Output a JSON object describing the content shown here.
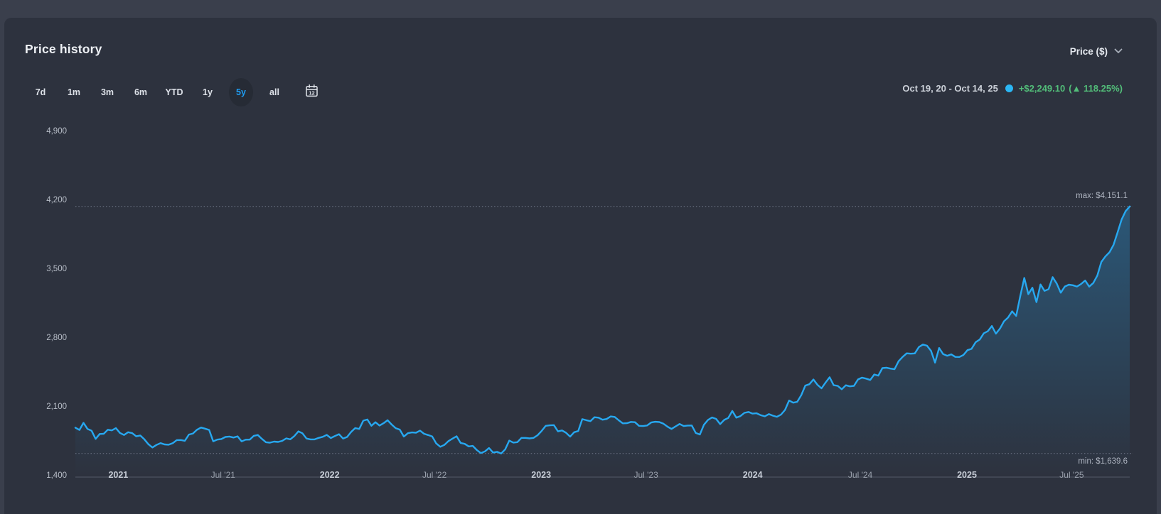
{
  "header": {
    "title": "Price history",
    "metric_label": "Price ($)"
  },
  "toolbar": {
    "ranges": [
      "7d",
      "1m",
      "3m",
      "6m",
      "YTD",
      "1y",
      "5y",
      "all"
    ],
    "selected": "5y",
    "calendar_day": "12"
  },
  "summary": {
    "date_range": "Oct 19, 20 - Oct 14, 25",
    "change_amount": "+$2,249.10",
    "change_percent_display": "(▲ 118.25%)"
  },
  "colors": {
    "line": "#27a8f0",
    "marker_dot": "#2bb7f5",
    "positive_green": "#52bd79",
    "selected_range_blue": "#1e9df2",
    "card_bg": "#2d323e"
  },
  "chart_data": {
    "type": "line",
    "title": "Price history",
    "ylabel": "Price ($)",
    "x_range_label": [
      "Oct 19, 20",
      "Oct 14, 25"
    ],
    "frequency": "weekly",
    "grid": "off",
    "ylim": [
      1400,
      4900
    ],
    "y_ticks": [
      {
        "value": 4900,
        "label": "4,900"
      },
      {
        "value": 4200,
        "label": "4,200"
      },
      {
        "value": 3500,
        "label": "3,500"
      },
      {
        "value": 2800,
        "label": "2,800"
      },
      {
        "value": 2100,
        "label": "2,100"
      },
      {
        "value": 1400,
        "label": "1,400"
      }
    ],
    "x_ticks": [
      {
        "label": "2021",
        "f": 0.0407,
        "emphasis": true
      },
      {
        "label": "Jul '21",
        "f": 0.1401,
        "emphasis": false
      },
      {
        "label": "2022",
        "f": 0.2412,
        "emphasis": true
      },
      {
        "label": "Jul '22",
        "f": 0.3406,
        "emphasis": false
      },
      {
        "label": "2023",
        "f": 0.4418,
        "emphasis": true
      },
      {
        "label": "Jul '23",
        "f": 0.5412,
        "emphasis": false
      },
      {
        "label": "2024",
        "f": 0.6424,
        "emphasis": true
      },
      {
        "label": "Jul '24",
        "f": 0.7445,
        "emphasis": false
      },
      {
        "label": "2025",
        "f": 0.8456,
        "emphasis": true
      },
      {
        "label": "Jul '25",
        "f": 0.945,
        "emphasis": false
      }
    ],
    "max": {
      "label": "max: $4,151.1",
      "value": 4151.1
    },
    "min": {
      "label": "min: $1,639.6",
      "value": 1639.6
    },
    "series": [
      {
        "name": "Price ($)",
        "values": [
          1902,
          1879,
          1951,
          1889,
          1871,
          1788,
          1838,
          1840,
          1881,
          1875,
          1898,
          1849,
          1828,
          1856,
          1847,
          1814,
          1823,
          1784,
          1734,
          1701,
          1727,
          1745,
          1732,
          1729,
          1744,
          1776,
          1777,
          1769,
          1832,
          1843,
          1881,
          1904,
          1892,
          1879,
          1764,
          1781,
          1787,
          1808,
          1812,
          1802,
          1814,
          1763,
          1780,
          1781,
          1819,
          1828,
          1788,
          1754,
          1750,
          1761,
          1757,
          1768,
          1793,
          1784,
          1817,
          1865,
          1845,
          1792,
          1783,
          1783,
          1798,
          1809,
          1829,
          1797,
          1817,
          1836,
          1792,
          1808,
          1859,
          1898,
          1889,
          1974,
          1985,
          1922,
          1958,
          1924,
          1948,
          1978,
          1934,
          1897,
          1883,
          1812,
          1846,
          1854,
          1851,
          1872,
          1840,
          1827,
          1813,
          1742,
          1708,
          1727,
          1766,
          1791,
          1815,
          1747,
          1738,
          1712,
          1717,
          1675,
          1644,
          1661,
          1695,
          1650,
          1657,
          1639.6,
          1682,
          1771,
          1751,
          1755,
          1798,
          1798,
          1793,
          1798,
          1826,
          1870,
          1921,
          1926,
          1928,
          1865,
          1874,
          1850,
          1811,
          1856,
          1868,
          1989,
          1978,
          1969,
          2008,
          2004,
          1983,
          1990,
          2016,
          2011,
          1977,
          1946,
          1948,
          1961,
          1958,
          1921,
          1919,
          1925,
          1955,
          1962,
          1959,
          1943,
          1913,
          1889,
          1915,
          1940,
          1919,
          1924,
          1925,
          1848,
          1833,
          1932,
          1981,
          2006,
          1992,
          1938,
          1981,
          2001,
          2072,
          2004,
          2020,
          2053,
          2062,
          2045,
          2049,
          2029,
          2018,
          2040,
          2024,
          2013,
          2035,
          2083,
          2179,
          2156,
          2165,
          2233,
          2330,
          2344,
          2392,
          2338,
          2302,
          2361,
          2415,
          2334,
          2327,
          2293,
          2333,
          2322,
          2327,
          2392,
          2411,
          2401,
          2387,
          2443,
          2431,
          2508,
          2512,
          2503,
          2497,
          2578,
          2622,
          2658,
          2654,
          2657,
          2721,
          2747,
          2736,
          2684,
          2563,
          2712,
          2650,
          2633,
          2648,
          2622,
          2621,
          2641,
          2690,
          2703,
          2771,
          2798,
          2861,
          2883,
          2936,
          2858,
          2910,
          2984,
          3022,
          3085,
          3038,
          3238,
          3424,
          3260,
          3325,
          3178,
          3358,
          3293,
          3310,
          3432,
          3368,
          3274,
          3337,
          3356,
          3350,
          3337,
          3363,
          3398,
          3336,
          3372,
          3448,
          3587,
          3643,
          3685,
          3760,
          3887,
          4018,
          4104,
          4151.1
        ]
      }
    ]
  }
}
